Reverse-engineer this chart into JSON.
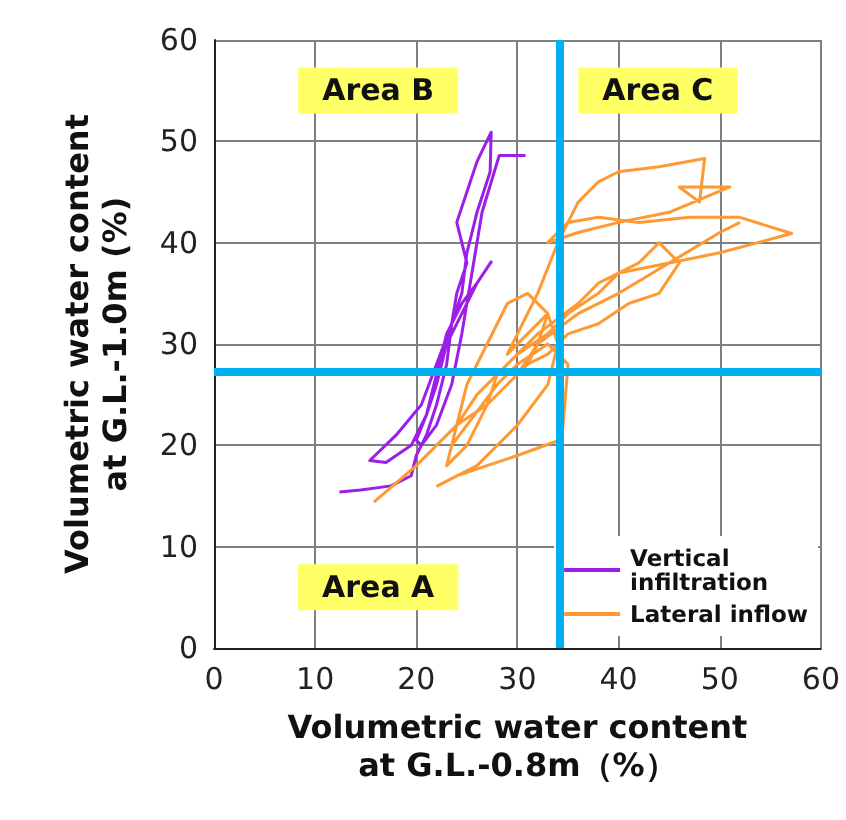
{
  "chart_data": {
    "type": "line",
    "xlabel": "Volumetric water content\nat G.L.-0.8m（%）",
    "ylabel": "Volumetric water content\nat G.L.-1.0m (%)",
    "xlim": [
      0,
      60
    ],
    "ylim": [
      0,
      60
    ],
    "xticks": [
      0,
      10,
      20,
      30,
      40,
      50,
      60
    ],
    "yticks": [
      0,
      10,
      20,
      30,
      40,
      50,
      60
    ],
    "grid": true,
    "legend": "bottom right",
    "marker": "none",
    "line_style": "solid",
    "annotations": [
      "Area B",
      "Area C",
      "Area A"
    ],
    "ref_lines": [
      {
        "axis": "x",
        "value": 34.2,
        "color": "#00b0f0"
      },
      {
        "axis": "y",
        "value": 27.3,
        "color": "#00b0f0"
      }
    ],
    "series": [
      {
        "name": "Vertical infiltration",
        "color": "#9b1fe8",
        "x": [
          12.4,
          14.5,
          17.5,
          19.5,
          20,
          21,
          22,
          23,
          23.5,
          24,
          25,
          24,
          25,
          26,
          27.4,
          27.3,
          26,
          25,
          24.5,
          23.5,
          22,
          20.5,
          18,
          15.4,
          17,
          19.5,
          21,
          22,
          23,
          24.5,
          26,
          27.4,
          26,
          24.5,
          23,
          22,
          21,
          20,
          20.5,
          22,
          23.5,
          24.5,
          25.5,
          26.5,
          28.2,
          30.8
        ],
        "values": [
          15.4,
          15.6,
          16,
          17,
          19,
          21,
          24,
          28,
          32,
          35,
          38,
          42,
          45,
          48,
          50.9,
          47,
          43,
          39,
          35,
          32,
          28,
          24,
          21,
          18.5,
          18.3,
          20,
          23,
          27,
          31,
          34,
          36,
          38.1,
          36,
          33,
          30,
          26,
          23,
          20.5,
          20,
          22,
          26,
          31,
          37,
          43,
          48.6,
          48.6
        ]
      },
      {
        "name": "Lateral inflow",
        "color": "#ff9933",
        "x": [
          15.8,
          20,
          24,
          27,
          29,
          31,
          32,
          33,
          31,
          29,
          30,
          32,
          34,
          36,
          38,
          40,
          44,
          48.5,
          48,
          46,
          51,
          45,
          40,
          36,
          33,
          35,
          38,
          42,
          47,
          52,
          57.1,
          50,
          45,
          40,
          38,
          35,
          33,
          30,
          28,
          26,
          24,
          23.5,
          25,
          28,
          30,
          33,
          35,
          34.4,
          30,
          27,
          24,
          22.1,
          26,
          30,
          33,
          34,
          33,
          31,
          29,
          27,
          25,
          24,
          23,
          25,
          27,
          28,
          30,
          32,
          36,
          38,
          40,
          42,
          44,
          46,
          44,
          41,
          38,
          35,
          33,
          31,
          30,
          32,
          36,
          40,
          45,
          50,
          52
        ],
        "values": [
          14.4,
          18,
          22,
          24,
          26,
          28,
          30,
          33,
          31,
          29,
          31,
          35,
          40,
          44,
          46,
          47,
          47.5,
          48.3,
          44,
          45.5,
          45.5,
          43,
          42,
          41,
          40,
          42,
          42.5,
          42,
          42.5,
          42.5,
          40.9,
          39,
          38,
          37,
          35,
          33,
          31,
          29,
          27,
          25,
          22,
          20,
          22,
          26,
          28,
          30,
          28,
          20.6,
          19,
          18,
          17,
          16,
          18,
          22,
          26,
          30,
          33,
          35,
          34,
          30,
          26,
          22,
          18,
          20,
          24,
          27,
          29,
          31,
          34,
          36,
          37,
          38,
          40,
          38,
          35,
          34,
          32,
          31,
          29,
          28,
          27,
          30,
          33,
          35,
          38,
          41,
          42
        ]
      }
    ]
  }
}
